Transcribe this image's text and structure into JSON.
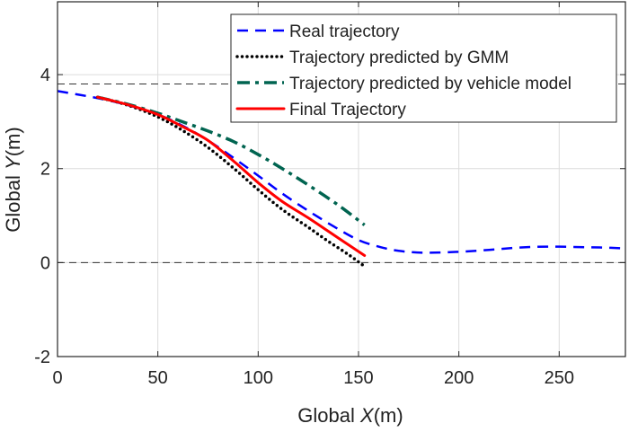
{
  "chart_data": {
    "type": "line",
    "title": "",
    "xlabel_prefix": "Global ",
    "xlabel_var": "X",
    "xlabel_unit": "(m)",
    "ylabel_prefix": "Global ",
    "ylabel_var": "Y",
    "ylabel_unit": "(m)",
    "xlim": [
      0,
      283
    ],
    "ylim": [
      -2,
      5.55
    ],
    "xticks": [
      0,
      50,
      100,
      150,
      200,
      250
    ],
    "yticks": [
      -2,
      0,
      2,
      4
    ],
    "xtick_labels": [
      "0",
      "50",
      "100",
      "150",
      "200",
      "250"
    ],
    "ytick_labels": [
      "-2",
      "0",
      "2",
      "4"
    ],
    "grid": true,
    "legend_position": "top-right",
    "reference_lines": [
      3.8,
      0
    ],
    "series": [
      {
        "name": "Real trajectory",
        "color": "#0000ff",
        "style": "dashed",
        "x": [
          0,
          20,
          35,
          50,
          62,
          75,
          88,
          100,
          112,
          125,
          138,
          150,
          160,
          170,
          183,
          200,
          215,
          230,
          245,
          260,
          272,
          283
        ],
        "y": [
          3.65,
          3.5,
          3.35,
          3.15,
          2.92,
          2.6,
          2.22,
          1.85,
          1.47,
          1.1,
          0.76,
          0.48,
          0.34,
          0.25,
          0.21,
          0.23,
          0.27,
          0.32,
          0.34,
          0.33,
          0.32,
          0.3
        ]
      },
      {
        "name": "Trajectory predicted by GMM",
        "color": "#000000",
        "style": "dotted",
        "x": [
          20,
          35,
          50,
          62,
          75,
          88,
          100,
          112,
          125,
          135,
          145,
          152
        ],
        "y": [
          3.52,
          3.35,
          3.1,
          2.82,
          2.45,
          2.0,
          1.55,
          1.13,
          0.75,
          0.45,
          0.17,
          -0.05
        ]
      },
      {
        "name": "Trajectory predicted by vehicle model",
        "color": "#006450",
        "style": "dashdot",
        "x": [
          20,
          35,
          50,
          62,
          75,
          88,
          100,
          112,
          125,
          140,
          153
        ],
        "y": [
          3.52,
          3.37,
          3.18,
          3.0,
          2.8,
          2.57,
          2.3,
          2.0,
          1.65,
          1.22,
          0.8
        ]
      },
      {
        "name": "Final Trajectory",
        "color": "#ff0000",
        "style": "solid",
        "x": [
          20,
          35,
          50,
          62,
          75,
          88,
          100,
          112,
          125,
          140,
          153
        ],
        "y": [
          3.52,
          3.36,
          3.15,
          2.9,
          2.6,
          2.15,
          1.7,
          1.3,
          0.95,
          0.52,
          0.15
        ]
      }
    ]
  }
}
